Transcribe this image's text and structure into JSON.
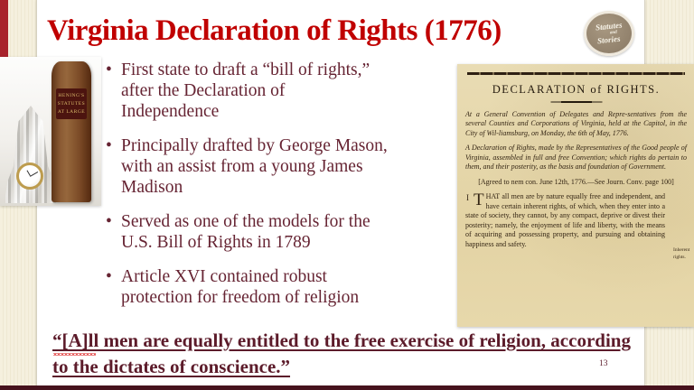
{
  "slide": {
    "title": "Virginia Declaration of Rights (1776)",
    "page_number": "13"
  },
  "logo": {
    "line1": "Statutes",
    "line2": "and",
    "line3": "Stories"
  },
  "photo": {
    "spine_label": "HENING'S STATUTES AT LARGE"
  },
  "bullets": [
    "First state to draft a “bill of rights,”\nafter the Declaration of\nIndependence",
    "Principally drafted by George Mason,\nwith an assist from a young James\nMadison",
    "Served as one of the models for the\nU.S. Bill of Rights in 1789",
    "Article XVI contained robust\nprotection for freedom of religion"
  ],
  "document": {
    "heading": "DECLARATION of RIGHTS.",
    "convention": "At a General Convention of Delegates and Repre-sentatives from the several Counties and Corporations of Virginia, held at the Capitol, in the City of Wil-liamsburg, on Monday, the 6th of May, 1776.",
    "declaration": "A Declaration of Rights, made by the Representatives of the Good people of Virginia, assembled in full and free Convention; which rights do pertain to them, and their posterity, as the basis and foundation of Government.",
    "agreed": "[Agreed to nem con. June 12th, 1776.—See Journ. Conv. page 100]",
    "article_number": "I",
    "article_initial": "T",
    "article_text": "HAT all men are by nature equally free and independent, and have certain inherent rights, of which, when they enter into a state of society, they cannot, by any compact, deprive or divest their posterity; namely, the enjoyment of life and liberty, with the means of acquiring and possessing property, and pursuing and obtaining happiness and safety.",
    "margin_note": "Inherent rights."
  },
  "quote": "“[A]ll men are equally entitled to the free exercise of religion, according to the dictates of conscience.”",
  "colors": {
    "title_red": "#c00000",
    "body_maroon": "#662433",
    "quote_maroon": "#5c1b2a",
    "left_accent_bar": "#a8232c",
    "bottom_accent_bar": "#46121d",
    "background_cream": "#f3eedb",
    "document_paper": "#e6d7ab",
    "logo_taupe": "#9b8b76"
  }
}
